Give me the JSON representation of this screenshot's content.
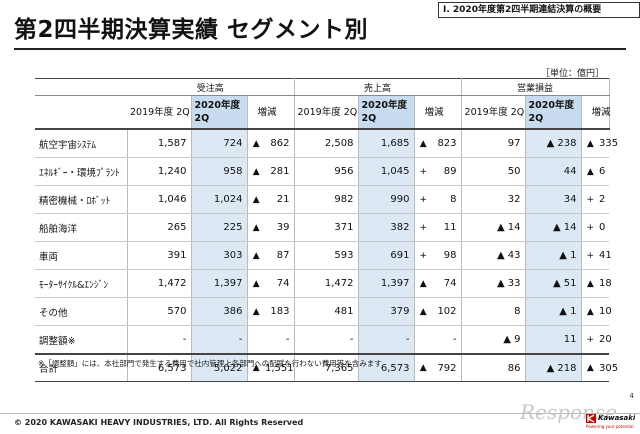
{
  "section_label": "Ⅰ. 2020年度第2四半期連結決算の概要",
  "title": "第2四半期決算実績 セグメント別",
  "unit": "［単位：億円］",
  "groups": [
    "受注高",
    "売上高",
    "営業損益"
  ],
  "sub_headers": {
    "prev": "2019年度 2Q",
    "cur": "2020年度 2Q",
    "change": "増減"
  },
  "rows": [
    {
      "name": "航空宇宙ｼｽﾃﾑ",
      "o_prev": "1,587",
      "o_cur": "724",
      "o_sign": "▲",
      "o_chg": "862",
      "s_prev": "2,508",
      "s_cur": "1,685",
      "s_sign": "▲",
      "s_chg": "823",
      "p_prev": "97",
      "p_cur": "▲ 238",
      "p_sign": "▲",
      "p_chg": "335"
    },
    {
      "name": "ｴﾈﾙｷﾞｰ・環境ﾌﾟﾗﾝﾄ",
      "o_prev": "1,240",
      "o_cur": "958",
      "o_sign": "▲",
      "o_chg": "281",
      "s_prev": "956",
      "s_cur": "1,045",
      "s_sign": "+",
      "s_chg": "89",
      "p_prev": "50",
      "p_cur": "44",
      "p_sign": "▲",
      "p_chg": "6"
    },
    {
      "name": "精密機械・ﾛﾎﾞｯﾄ",
      "o_prev": "1,046",
      "o_cur": "1,024",
      "o_sign": "▲",
      "o_chg": "21",
      "s_prev": "982",
      "s_cur": "990",
      "s_sign": "+",
      "s_chg": "8",
      "p_prev": "32",
      "p_cur": "34",
      "p_sign": "+",
      "p_chg": "2"
    },
    {
      "name": "船舶海洋",
      "o_prev": "265",
      "o_cur": "225",
      "o_sign": "▲",
      "o_chg": "39",
      "s_prev": "371",
      "s_cur": "382",
      "s_sign": "+",
      "s_chg": "11",
      "p_prev": "▲ 14",
      "p_cur": "▲ 14",
      "p_sign": "+",
      "p_chg": "0"
    },
    {
      "name": "車両",
      "o_prev": "391",
      "o_cur": "303",
      "o_sign": "▲",
      "o_chg": "87",
      "s_prev": "593",
      "s_cur": "691",
      "s_sign": "+",
      "s_chg": "98",
      "p_prev": "▲ 43",
      "p_cur": "▲ 1",
      "p_sign": "+",
      "p_chg": "41"
    },
    {
      "name": "ﾓｰﾀｰｻｲｸﾙ&ｴﾝｼﾞﾝ",
      "o_prev": "1,472",
      "o_cur": "1,397",
      "o_sign": "▲",
      "o_chg": "74",
      "s_prev": "1,472",
      "s_cur": "1,397",
      "s_sign": "▲",
      "s_chg": "74",
      "p_prev": "▲ 33",
      "p_cur": "▲ 51",
      "p_sign": "▲",
      "p_chg": "18"
    },
    {
      "name": "その他",
      "o_prev": "570",
      "o_cur": "386",
      "o_sign": "▲",
      "o_chg": "183",
      "s_prev": "481",
      "s_cur": "379",
      "s_sign": "▲",
      "s_chg": "102",
      "p_prev": "8",
      "p_cur": "▲ 1",
      "p_sign": "▲",
      "p_chg": "10"
    },
    {
      "name": "調整額※",
      "o_prev": "-",
      "o_cur": "-",
      "o_sign": "",
      "o_chg": "-",
      "s_prev": "-",
      "s_cur": "-",
      "s_sign": "",
      "s_chg": "-",
      "p_prev": "▲ 9",
      "p_cur": "11",
      "p_sign": "+",
      "p_chg": "20"
    }
  ],
  "total": {
    "name": "合計",
    "o_prev": "6,573",
    "o_cur": "5,022",
    "o_sign": "▲",
    "o_chg": "1,551",
    "s_prev": "7,365",
    "s_cur": "6,573",
    "s_sign": "▲",
    "s_chg": "792",
    "p_prev": "86",
    "p_cur": "▲ 218",
    "p_sign": "▲",
    "p_chg": "305"
  },
  "note": "※「調整額」には、本社部門で発生する費用で社内管理上各部門への配賦を行わない費用等を含みます",
  "copyright": "© 2020 KAWASAKI HEAVY INDUSTRIES, LTD. All Rights Reserved",
  "page_number": "4",
  "watermark": "Response.",
  "brand": {
    "name": "Kawasaki",
    "tagline": "Powering your potential",
    "color": "#c00000"
  },
  "colors": {
    "current_year_fill": "#dce9f5",
    "current_year_header": "#c7dcee"
  }
}
